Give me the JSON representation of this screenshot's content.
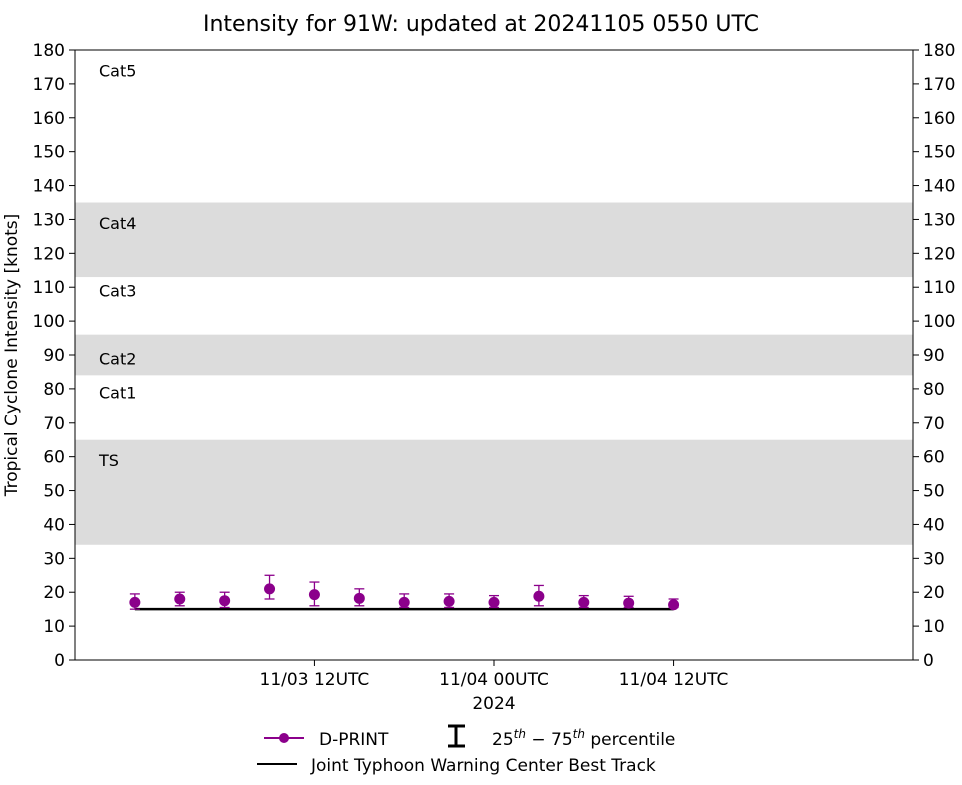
{
  "chart_data": {
    "type": "scatter",
    "title": "Intensity for 91W: updated at 20241105 0550 UTC",
    "xlabel": "2024",
    "ylabel": "Tropical Cyclone Intensity [knots]",
    "ylim": [
      0,
      180
    ],
    "yticks": [
      0,
      10,
      20,
      30,
      40,
      50,
      60,
      70,
      80,
      90,
      100,
      110,
      120,
      130,
      140,
      150,
      160,
      170,
      180
    ],
    "ytick_labels": [
      "0",
      "10",
      "20",
      "30",
      "40",
      "50",
      "60",
      "70",
      "80",
      "90",
      "100",
      "110",
      "120",
      "130",
      "140",
      "150",
      "160",
      "170",
      "180"
    ],
    "xlim": [
      "2024-11-02T20:00Z",
      "2024-11-05T04:00Z"
    ],
    "xticks": [
      {
        "time": "2024-11-03T12:00Z",
        "label": "11/03 12UTC"
      },
      {
        "time": "2024-11-04T00:00Z",
        "label": "11/04 00UTC"
      },
      {
        "time": "2024-11-04T12:00Z",
        "label": "11/04 12UTC"
      }
    ],
    "category_bands": [
      {
        "label": "TS",
        "min": 34,
        "max": 65,
        "shaded": true
      },
      {
        "label": "Cat1",
        "min": 65,
        "max": 84,
        "shaded": false
      },
      {
        "label": "Cat2",
        "min": 84,
        "max": 96,
        "shaded": true
      },
      {
        "label": "Cat3",
        "min": 96,
        "max": 113,
        "shaded": false
      },
      {
        "label": "Cat4",
        "min": 113,
        "max": 135,
        "shaded": true
      },
      {
        "label": "Cat5",
        "min": 135,
        "max": 180,
        "shaded": false
      }
    ],
    "category_label_values": {
      "TS": 59,
      "Cat1": 79,
      "Cat2": 89,
      "Cat3": 109,
      "Cat4": 129,
      "Cat5": 174
    },
    "series": [
      {
        "name": "D-PRINT",
        "color": "#8b008b",
        "points": [
          {
            "time": "2024-11-03T00:00Z",
            "y": 17,
            "p25": 15,
            "p75": 19.5
          },
          {
            "time": "2024-11-03T03:00Z",
            "y": 18,
            "p25": 16,
            "p75": 20
          },
          {
            "time": "2024-11-03T06:00Z",
            "y": 17.5,
            "p25": 15.5,
            "p75": 20
          },
          {
            "time": "2024-11-03T09:00Z",
            "y": 21,
            "p25": 18,
            "p75": 25
          },
          {
            "time": "2024-11-03T12:00Z",
            "y": 19.3,
            "p25": 16,
            "p75": 23
          },
          {
            "time": "2024-11-03T15:00Z",
            "y": 18.2,
            "p25": 16,
            "p75": 21
          },
          {
            "time": "2024-11-03T18:00Z",
            "y": 17,
            "p25": 15.5,
            "p75": 19.5
          },
          {
            "time": "2024-11-03T21:00Z",
            "y": 17.3,
            "p25": 15.5,
            "p75": 19.5
          },
          {
            "time": "2024-11-04T00:00Z",
            "y": 17,
            "p25": 15.5,
            "p75": 19
          },
          {
            "time": "2024-11-04T03:00Z",
            "y": 18.8,
            "p25": 16,
            "p75": 22
          },
          {
            "time": "2024-11-04T06:00Z",
            "y": 17,
            "p25": 15.5,
            "p75": 19
          },
          {
            "time": "2024-11-04T09:00Z",
            "y": 16.8,
            "p25": 15.5,
            "p75": 18.8
          },
          {
            "time": "2024-11-04T12:00Z",
            "y": 16.3,
            "p25": 15.5,
            "p75": 18
          }
        ]
      },
      {
        "name": "Joint Typhoon Warning Center Best Track",
        "color": "#000000",
        "points": [
          {
            "time": "2024-11-03T00:00Z",
            "y": 15
          },
          {
            "time": "2024-11-04T12:00Z",
            "y": 15
          }
        ]
      }
    ],
    "legend": {
      "placement": "bottom-center",
      "dprint_label": "D-PRINT",
      "percentile_label": "25th − 75th percentile",
      "best_track_label": "Joint Typhoon Warning Center Best Track"
    },
    "colors": {
      "band_shade": "#dcdcdc",
      "dprint": "#8b008b",
      "best_track": "#000000"
    }
  }
}
